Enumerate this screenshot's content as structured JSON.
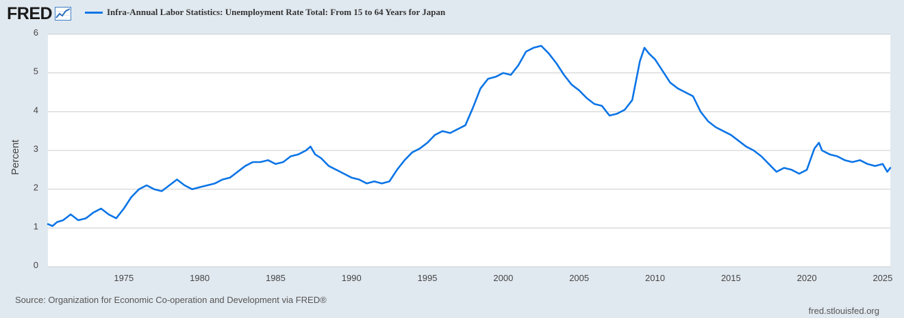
{
  "header": {
    "logo": "FRED",
    "logo_icon": "trend-chart-icon"
  },
  "footer": {
    "source": "Source: Organization for Economic Co-operation and Development via FRED®",
    "url": "fred.stlouisfed.org"
  },
  "colors": {
    "line": "#0a74e6",
    "background": "#e1e9f0",
    "plot": "#ffffff",
    "grid": "#cccccc"
  },
  "chart_data": {
    "type": "line",
    "title": "Infra-Annual Labor Statistics: Unemployment Rate Total: From 15 to 64 Years for Japan",
    "ylabel": "Percent",
    "xlabel": "",
    "xlim": [
      1970.0,
      2025.5
    ],
    "ylim": [
      0,
      6
    ],
    "yticks": [
      0,
      1,
      2,
      3,
      4,
      5,
      6
    ],
    "xticks": [
      1975,
      1980,
      1985,
      1990,
      1995,
      2000,
      2005,
      2010,
      2015,
      2020,
      2025
    ],
    "grid": true,
    "series": [
      {
        "name": "Unemployment Rate Total: From 15 to 64 Years for Japan",
        "x": [
          1970.0,
          1970.3,
          1970.6,
          1971.0,
          1971.5,
          1972.0,
          1972.5,
          1973.0,
          1973.5,
          1974.0,
          1974.5,
          1975.0,
          1975.5,
          1976.0,
          1976.5,
          1977.0,
          1977.5,
          1978.0,
          1978.5,
          1979.0,
          1979.5,
          1980.0,
          1980.5,
          1981.0,
          1981.5,
          1982.0,
          1982.5,
          1983.0,
          1983.5,
          1984.0,
          1984.5,
          1985.0,
          1985.5,
          1986.0,
          1986.5,
          1987.0,
          1987.3,
          1987.6,
          1988.0,
          1988.5,
          1989.0,
          1989.5,
          1990.0,
          1990.5,
          1991.0,
          1991.5,
          1992.0,
          1992.5,
          1993.0,
          1993.5,
          1994.0,
          1994.5,
          1995.0,
          1995.5,
          1996.0,
          1996.5,
          1997.0,
          1997.5,
          1998.0,
          1998.5,
          1999.0,
          1999.5,
          2000.0,
          2000.5,
          2001.0,
          2001.5,
          2002.0,
          2002.5,
          2003.0,
          2003.5,
          2004.0,
          2004.5,
          2005.0,
          2005.5,
          2006.0,
          2006.5,
          2007.0,
          2007.5,
          2008.0,
          2008.5,
          2009.0,
          2009.3,
          2009.6,
          2010.0,
          2010.5,
          2011.0,
          2011.5,
          2012.0,
          2012.5,
          2013.0,
          2013.5,
          2014.0,
          2014.5,
          2015.0,
          2015.5,
          2016.0,
          2016.5,
          2017.0,
          2017.5,
          2018.0,
          2018.5,
          2019.0,
          2019.5,
          2020.0,
          2020.5,
          2020.8,
          2021.0,
          2021.5,
          2022.0,
          2022.5,
          2023.0,
          2023.5,
          2024.0,
          2024.5,
          2025.0,
          2025.3,
          2025.5
        ],
        "values": [
          1.1,
          1.05,
          1.15,
          1.2,
          1.35,
          1.2,
          1.25,
          1.4,
          1.5,
          1.35,
          1.25,
          1.5,
          1.8,
          2.0,
          2.1,
          2.0,
          1.95,
          2.1,
          2.25,
          2.1,
          2.0,
          2.05,
          2.1,
          2.15,
          2.25,
          2.3,
          2.45,
          2.6,
          2.7,
          2.7,
          2.75,
          2.65,
          2.7,
          2.85,
          2.9,
          3.0,
          3.1,
          2.9,
          2.8,
          2.6,
          2.5,
          2.4,
          2.3,
          2.25,
          2.15,
          2.2,
          2.15,
          2.2,
          2.5,
          2.75,
          2.95,
          3.05,
          3.2,
          3.4,
          3.5,
          3.45,
          3.55,
          3.65,
          4.1,
          4.6,
          4.85,
          4.9,
          5.0,
          4.95,
          5.2,
          5.55,
          5.65,
          5.7,
          5.5,
          5.25,
          4.95,
          4.7,
          4.55,
          4.35,
          4.2,
          4.15,
          3.9,
          3.95,
          4.05,
          4.3,
          5.3,
          5.65,
          5.5,
          5.35,
          5.05,
          4.75,
          4.6,
          4.5,
          4.4,
          4.0,
          3.75,
          3.6,
          3.5,
          3.4,
          3.25,
          3.1,
          3.0,
          2.85,
          2.65,
          2.45,
          2.55,
          2.5,
          2.4,
          2.5,
          3.05,
          3.2,
          3.0,
          2.9,
          2.85,
          2.75,
          2.7,
          2.75,
          2.65,
          2.6,
          2.65,
          2.45,
          2.55
        ]
      }
    ]
  }
}
